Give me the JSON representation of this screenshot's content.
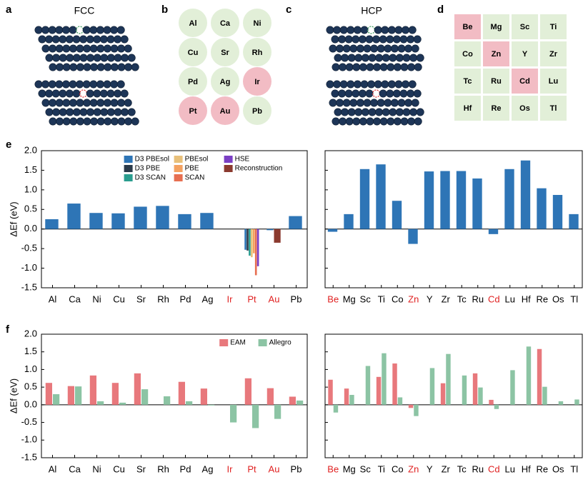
{
  "panel_labels": [
    "a",
    "b",
    "c",
    "d",
    "e",
    "f"
  ],
  "fcc": {
    "title": "FCC"
  },
  "hcp": {
    "title": "HCP"
  },
  "fcc_elements": [
    {
      "label": "Al",
      "color": "#e2efd8"
    },
    {
      "label": "Ca",
      "color": "#e2efd8"
    },
    {
      "label": "Ni",
      "color": "#e2efd8"
    },
    {
      "label": "Cu",
      "color": "#e2efd8"
    },
    {
      "label": "Sr",
      "color": "#e2efd8"
    },
    {
      "label": "Rh",
      "color": "#e2efd8"
    },
    {
      "label": "Pd",
      "color": "#e2efd8"
    },
    {
      "label": "Ag",
      "color": "#e2efd8"
    },
    {
      "label": "Ir",
      "color": "#f2bcc4"
    },
    {
      "label": "Pt",
      "color": "#f2bcc4"
    },
    {
      "label": "Au",
      "color": "#f2bcc4"
    },
    {
      "label": "Pb",
      "color": "#e2efd8"
    }
  ],
  "hcp_elements": [
    {
      "label": "Be",
      "color": "#f2bcc4"
    },
    {
      "label": "Mg",
      "color": "#e2efd8"
    },
    {
      "label": "Sc",
      "color": "#e2efd8"
    },
    {
      "label": "Ti",
      "color": "#e2efd8"
    },
    {
      "label": "Co",
      "color": "#e2efd8"
    },
    {
      "label": "Zn",
      "color": "#f2bcc4"
    },
    {
      "label": "Y",
      "color": "#e2efd8"
    },
    {
      "label": "Zr",
      "color": "#e2efd8"
    },
    {
      "label": "Tc",
      "color": "#e2efd8"
    },
    {
      "label": "Ru",
      "color": "#e2efd8"
    },
    {
      "label": "Cd",
      "color": "#f2bcc4"
    },
    {
      "label": "Lu",
      "color": "#e2efd8"
    },
    {
      "label": "Hf",
      "color": "#e2efd8"
    },
    {
      "label": "Re",
      "color": "#e2efd8"
    },
    {
      "label": "Os",
      "color": "#e2efd8"
    },
    {
      "label": "Tl",
      "color": "#e2efd8"
    }
  ],
  "chart_data": [
    {
      "type": "bar",
      "grouping": "dense",
      "ylabel": "ΔEf (eV)",
      "legend": "upper right",
      "show_ytick_labels": true,
      "categories": [
        "Al",
        "Ca",
        "Ni",
        "Cu",
        "Sr",
        "Rh",
        "Pd",
        "Ag",
        "Ir",
        "Pt",
        "Au",
        "Pb"
      ],
      "category_colors": [
        "#000000",
        "#000000",
        "#000000",
        "#000000",
        "#000000",
        "#000000",
        "#000000",
        "#000000",
        "#e02020",
        "#e02020",
        "#e02020",
        "#000000"
      ],
      "series": [
        {
          "name": "D3 PBEsol",
          "color": "#2e75b6",
          "values": [
            0.25,
            0.65,
            0.41,
            0.4,
            0.57,
            0.59,
            0.38,
            0.41,
            null,
            -0.53,
            -0.03,
            0.33
          ]
        },
        {
          "name": "D3 PBE",
          "color": "#2b3a4a",
          "values": [
            null,
            null,
            null,
            null,
            null,
            null,
            null,
            null,
            null,
            -0.55,
            null,
            null
          ]
        },
        {
          "name": "D3 SCAN",
          "color": "#2a9d8f",
          "values": [
            null,
            null,
            null,
            null,
            null,
            null,
            null,
            null,
            null,
            -0.68,
            null,
            null
          ]
        },
        {
          "name": "PBEsol",
          "color": "#e8c07a",
          "values": [
            null,
            null,
            null,
            null,
            null,
            null,
            null,
            null,
            null,
            -0.72,
            null,
            null
          ]
        },
        {
          "name": "PBE",
          "color": "#f4a261",
          "values": [
            null,
            null,
            null,
            null,
            null,
            null,
            null,
            null,
            null,
            -0.62,
            null,
            null
          ]
        },
        {
          "name": "SCAN",
          "color": "#e76f51",
          "values": [
            null,
            null,
            null,
            null,
            null,
            null,
            null,
            null,
            null,
            -1.18,
            null,
            null
          ]
        },
        {
          "name": "HSE",
          "color": "#7b3fc4",
          "values": [
            null,
            null,
            null,
            null,
            null,
            null,
            null,
            null,
            null,
            -0.95,
            null,
            null
          ]
        },
        {
          "name": "Reconstruction",
          "color": "#8b3a2f",
          "values": [
            null,
            null,
            null,
            null,
            null,
            null,
            null,
            null,
            null,
            null,
            -0.35,
            null
          ]
        }
      ],
      "ylim": [
        -1.5,
        2.0
      ],
      "yticks": [
        -1.5,
        {
          "value": -1,
          "label": "-1.0"
        },
        -0.5,
        {
          "value": 0,
          "label": "0.0"
        },
        0.5,
        {
          "value": 1,
          "label": "1.0"
        },
        1.5,
        {
          "value": 2,
          "label": "2.0"
        }
      ]
    },
    {
      "type": "bar",
      "grouping": "dense",
      "show_ytick_labels": false,
      "categories": [
        "Be",
        "Mg",
        "Sc",
        "Ti",
        "Co",
        "Zn",
        "Y",
        "Zr",
        "Tc",
        "Ru",
        "Cd",
        "Lu",
        "Hf",
        "Re",
        "Os",
        "Tl"
      ],
      "category_colors": [
        "#e02020",
        "#000000",
        "#000000",
        "#000000",
        "#000000",
        "#e02020",
        "#000000",
        "#000000",
        "#000000",
        "#000000",
        "#e02020",
        "#000000",
        "#000000",
        "#000000",
        "#000000",
        "#000000"
      ],
      "series": [
        {
          "name": "D3 PBEsol",
          "color": "#2e75b6",
          "values": [
            -0.07,
            0.38,
            1.53,
            1.65,
            0.72,
            -0.38,
            1.47,
            1.48,
            1.48,
            1.29,
            -0.13,
            1.53,
            1.75,
            1.04,
            0.87,
            0.38
          ]
        }
      ],
      "ylim": [
        -1.5,
        2.0
      ],
      "yticks": [
        -1.5,
        -1,
        -0.5,
        0,
        0.5,
        1,
        1.5,
        2
      ]
    },
    {
      "type": "bar",
      "grouping": "fixed",
      "ylabel": "ΔEf (eV)",
      "legend": "upper right",
      "show_ytick_labels": true,
      "categories": [
        "Al",
        "Ca",
        "Ni",
        "Cu",
        "Sr",
        "Rh",
        "Pd",
        "Ag",
        "Ir",
        "Pt",
        "Au",
        "Pb"
      ],
      "category_colors": [
        "#000000",
        "#000000",
        "#000000",
        "#000000",
        "#000000",
        "#000000",
        "#000000",
        "#000000",
        "#e02020",
        "#e02020",
        "#e02020",
        "#000000"
      ],
      "series": [
        {
          "name": "EAM",
          "color": "#e8787c",
          "values": [
            0.62,
            0.53,
            0.83,
            0.62,
            0.89,
            null,
            0.65,
            0.46,
            null,
            0.75,
            0.47,
            0.23
          ]
        },
        {
          "name": "Allegro",
          "color": "#8cc4a4",
          "values": [
            0.3,
            0.52,
            0.1,
            0.06,
            0.44,
            0.24,
            0.1,
            -0.02,
            -0.5,
            -0.66,
            -0.4,
            0.12
          ]
        }
      ],
      "ylim": [
        -1.5,
        2.0
      ],
      "yticks": [
        -1.5,
        {
          "value": -1,
          "label": "-1.0"
        },
        -0.5,
        {
          "value": 0,
          "label": "0.0"
        },
        0.5,
        {
          "value": 1,
          "label": "1.0"
        },
        1.5,
        {
          "value": 2,
          "label": "2.0"
        }
      ]
    },
    {
      "type": "bar",
      "grouping": "fixed",
      "show_ytick_labels": false,
      "categories": [
        "Be",
        "Mg",
        "Sc",
        "Ti",
        "Co",
        "Zn",
        "Y",
        "Zr",
        "Tc",
        "Ru",
        "Cd",
        "Lu",
        "Hf",
        "Re",
        "Os",
        "Tl"
      ],
      "category_colors": [
        "#e02020",
        "#000000",
        "#000000",
        "#000000",
        "#000000",
        "#e02020",
        "#000000",
        "#000000",
        "#000000",
        "#000000",
        "#e02020",
        "#000000",
        "#000000",
        "#000000",
        "#000000",
        "#000000"
      ],
      "series": [
        {
          "name": "EAM",
          "color": "#e8787c",
          "values": [
            0.71,
            0.46,
            null,
            0.79,
            1.17,
            -0.09,
            null,
            0.61,
            null,
            0.89,
            0.14,
            null,
            null,
            1.58,
            null,
            null
          ]
        },
        {
          "name": "Allegro",
          "color": "#8cc4a4",
          "values": [
            -0.22,
            0.28,
            1.1,
            1.46,
            0.21,
            -0.32,
            1.04,
            1.44,
            0.83,
            0.49,
            -0.12,
            0.98,
            1.65,
            0.51,
            0.1,
            0.15
          ]
        }
      ],
      "ylim": [
        -1.5,
        2.0
      ],
      "yticks": [
        -1.5,
        -1,
        -0.5,
        0,
        0.5,
        1,
        1.5,
        2
      ]
    }
  ]
}
